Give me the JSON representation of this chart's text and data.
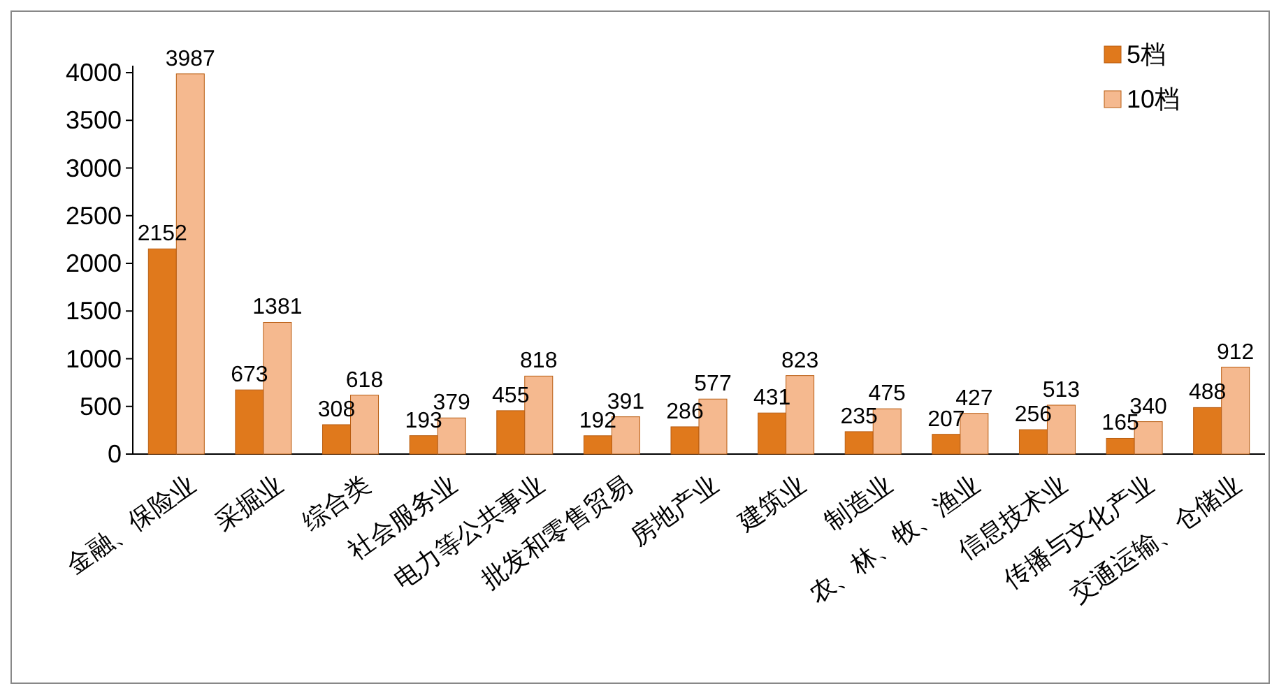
{
  "chart_data": {
    "type": "bar",
    "categories": [
      "金融、保险业",
      "采掘业",
      "综合类",
      "社会服务业",
      "电力等公共事业",
      "批发和零售贸易",
      "房地产业",
      "建筑业",
      "制造业",
      "农、林、牧、渔业",
      "信息技术业",
      "传播与文化产业",
      "交通运输、仓储业"
    ],
    "series": [
      {
        "name": "5档",
        "color": "#e0791c",
        "values": [
          2152,
          673,
          308,
          193,
          455,
          192,
          286,
          431,
          235,
          207,
          256,
          165,
          488
        ]
      },
      {
        "name": "10档",
        "color": "#f5b98f",
        "values": [
          3987,
          1381,
          618,
          379,
          818,
          391,
          577,
          823,
          475,
          427,
          513,
          340,
          912
        ]
      }
    ],
    "ylim": [
      0,
      4000
    ],
    "yticks": [
      0,
      500,
      1000,
      1500,
      2000,
      2500,
      3000,
      3500,
      4000
    ],
    "data_labels": true,
    "legend": "top right"
  }
}
